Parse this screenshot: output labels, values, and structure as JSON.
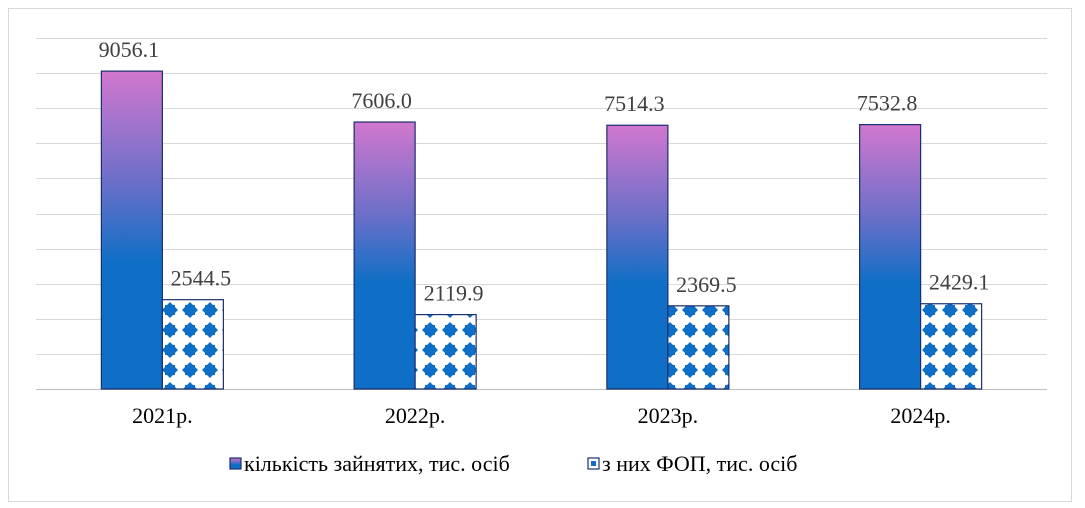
{
  "chart_data": {
    "type": "bar",
    "categories": [
      "2021р.",
      "2022р.",
      "2023р.",
      "2024р."
    ],
    "series": [
      {
        "name": "кількість зайнятих, тис. осіб",
        "values": [
          9056.1,
          7606.0,
          7514.3,
          7532.8
        ],
        "labels": [
          "9056.1",
          "7606.0",
          "7514.3",
          "7532.8"
        ]
      },
      {
        "name": "з них ФОП, тис. осіб",
        "values": [
          2544.5,
          2119.9,
          2369.5,
          2429.1
        ],
        "labels": [
          "2544.5",
          "2119.9",
          "2369.5",
          "2429.1"
        ]
      }
    ],
    "ylim": [
      0,
      10000
    ],
    "grid": true,
    "legend": "bottom",
    "colors": {
      "gradient_top": "#d277cf",
      "gradient_mid": "#6b6fc8",
      "gradient_bottom": "#0f6fc6",
      "bar_border": "#1b2e6e",
      "pattern": "#0f6fc6",
      "gridline": "#d9d9d9",
      "axis": "#bfbfbf"
    }
  }
}
